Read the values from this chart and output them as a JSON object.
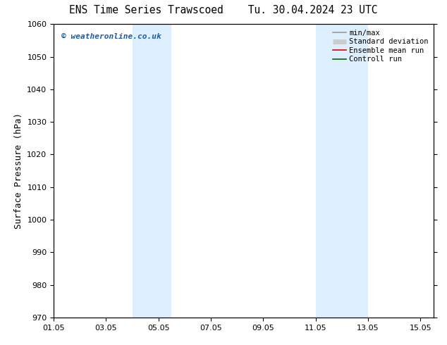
{
  "title_left": "ENS Time Series Trawscoed",
  "title_right": "Tu. 30.04.2024 23 UTC",
  "ylabel": "Surface Pressure (hPa)",
  "ylim": [
    970,
    1060
  ],
  "yticks": [
    970,
    980,
    990,
    1000,
    1010,
    1020,
    1030,
    1040,
    1050,
    1060
  ],
  "xlim": [
    1.0,
    15.5
  ],
  "xtick_positions": [
    1.0,
    3.0,
    5.0,
    7.0,
    9.0,
    11.0,
    13.0,
    15.0
  ],
  "xtick_labels": [
    "01.05",
    "03.05",
    "05.05",
    "07.05",
    "09.05",
    "11.05",
    "13.05",
    "15.05"
  ],
  "shaded_bands": [
    {
      "x_start": 4.0,
      "x_end": 5.5,
      "color": "#ddeeff"
    },
    {
      "x_start": 11.0,
      "x_end": 13.0,
      "color": "#ddeeff"
    }
  ],
  "legend_entries": [
    {
      "label": "min/max",
      "color": "#999999",
      "lw": 1.2,
      "type": "line"
    },
    {
      "label": "Standard deviation",
      "color": "#cccccc",
      "lw": 5,
      "type": "linewide"
    },
    {
      "label": "Ensemble mean run",
      "color": "#dd0000",
      "lw": 1.2,
      "type": "line"
    },
    {
      "label": "Controll run",
      "color": "#006600",
      "lw": 1.2,
      "type": "line"
    }
  ],
  "watermark_text": "© weatheronline.co.uk",
  "watermark_color": "#1a5ca8",
  "background_color": "#ffffff",
  "plot_bg_color": "#ffffff",
  "title_fontsize": 10.5,
  "tick_fontsize": 8,
  "ylabel_fontsize": 9,
  "legend_fontsize": 7.5
}
